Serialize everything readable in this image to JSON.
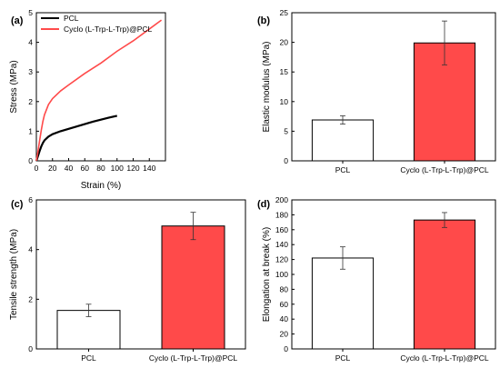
{
  "chart_data": [
    {
      "panel_label": "(a)",
      "type": "line",
      "xlabel": "Strain (%)",
      "ylabel": "Stress (MPa)",
      "xlim": [
        0,
        160
      ],
      "ylim": [
        0,
        5
      ],
      "xticks": [
        0,
        20,
        40,
        60,
        80,
        100,
        120,
        140
      ],
      "yticks": [
        0,
        1,
        2,
        3,
        4,
        5
      ],
      "legend": "top-left",
      "series": [
        {
          "name": "PCL",
          "color": "#000000",
          "x": [
            0,
            1,
            2,
            4,
            6,
            8,
            10,
            15,
            20,
            30,
            40,
            50,
            60,
            70,
            80,
            90,
            100
          ],
          "y": [
            0,
            0.08,
            0.16,
            0.33,
            0.48,
            0.6,
            0.69,
            0.82,
            0.9,
            1.0,
            1.08,
            1.16,
            1.24,
            1.32,
            1.39,
            1.46,
            1.52
          ]
        },
        {
          "name": "Cyclo (L-Trp-L-Trp)@PCL",
          "color": "#ff4a4a",
          "x": [
            0,
            1,
            2,
            4,
            6,
            8,
            10,
            15,
            20,
            30,
            40,
            60,
            80,
            100,
            120,
            140,
            155
          ],
          "y": [
            0,
            0.15,
            0.32,
            0.68,
            1.02,
            1.32,
            1.55,
            1.9,
            2.1,
            2.36,
            2.56,
            2.95,
            3.3,
            3.7,
            4.05,
            4.45,
            4.75
          ]
        }
      ]
    },
    {
      "panel_label": "(b)",
      "type": "bar",
      "xlabel": "",
      "ylabel": "Elastic modulus (MPa)",
      "ylim": [
        0,
        25
      ],
      "yticks": [
        0,
        5,
        10,
        15,
        20,
        25
      ],
      "categories": [
        "PCL",
        "Cyclo (L-Trp-L-Trp)@PCL"
      ],
      "values": [
        6.9,
        19.9
      ],
      "errors": [
        0.7,
        3.7
      ],
      "colors": [
        "#ffffff",
        "#ff4a4a"
      ]
    },
    {
      "panel_label": "(c)",
      "type": "bar",
      "xlabel": "",
      "ylabel": "Tensile strength (MPa)",
      "ylim": [
        0,
        6
      ],
      "yticks": [
        0,
        2,
        4,
        6
      ],
      "categories": [
        "PCL",
        "Cyclo (L-Trp-L-Trp)@PCL"
      ],
      "values": [
        1.55,
        4.95
      ],
      "errors": [
        0.25,
        0.55
      ],
      "colors": [
        "#ffffff",
        "#ff4a4a"
      ]
    },
    {
      "panel_label": "(d)",
      "type": "bar",
      "xlabel": "",
      "ylabel": "Elongation at break (%)",
      "ylim": [
        0,
        200
      ],
      "yticks": [
        0,
        20,
        40,
        60,
        80,
        100,
        120,
        140,
        160,
        180,
        200
      ],
      "categories": [
        "PCL",
        "Cyclo (L-Trp-L-Trp)@PCL"
      ],
      "values": [
        122,
        173
      ],
      "errors": [
        15,
        10
      ],
      "colors": [
        "#ffffff",
        "#ff4a4a"
      ]
    }
  ]
}
